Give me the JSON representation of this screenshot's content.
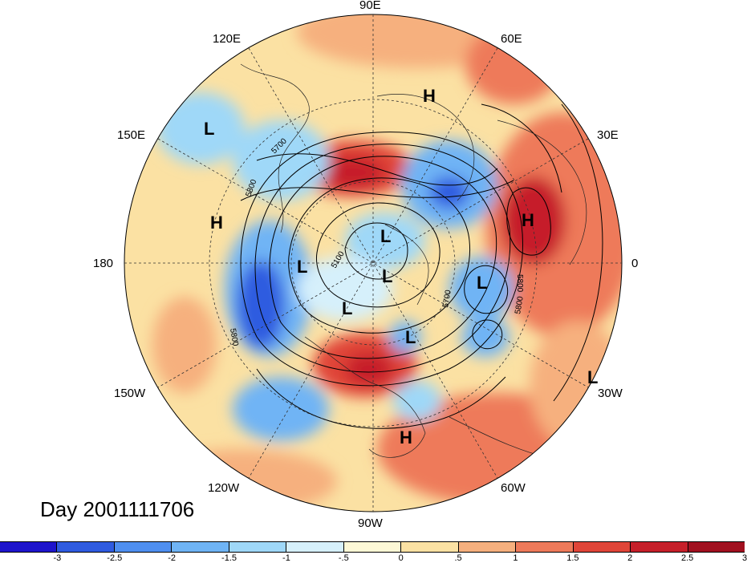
{
  "title": "Day 2001111706",
  "longitude_labels": {
    "lon_90e": "90E",
    "lon_120e": "120E",
    "lon_60e": "60E",
    "lon_150e": "150E",
    "lon_30e": "30E",
    "lon_180": "180",
    "lon_0": "0",
    "lon_150w": "150W",
    "lon_30w": "30W",
    "lon_120w": "120W",
    "lon_60w": "60W",
    "lon_90w": "90W"
  },
  "pressure_centers": [
    {
      "label": "H"
    },
    {
      "label": "L"
    },
    {
      "label": "H"
    },
    {
      "label": "H"
    },
    {
      "label": "L"
    },
    {
      "label": "L"
    },
    {
      "label": "L"
    },
    {
      "label": "L"
    },
    {
      "label": "L"
    },
    {
      "label": "L"
    },
    {
      "label": "L"
    },
    {
      "label": "H"
    }
  ],
  "contour_labels": [
    "5700",
    "5800",
    "5100",
    "5700",
    "5800",
    "5800",
    "5800"
  ],
  "colorbar": {
    "colors": [
      "#1e14cc",
      "#2f5be0",
      "#4f8ff0",
      "#6fb4f5",
      "#9fd8f8",
      "#d6f0fb",
      "#fdf8d6",
      "#fbe1a3",
      "#f6b07e",
      "#ee7a5a",
      "#e04538",
      "#c61f2a",
      "#a1101f"
    ],
    "ticks": [
      "-3",
      "-2.5",
      "-2",
      "-1.5",
      "-1",
      "-.5",
      "0",
      ".5",
      "1",
      "1.5",
      "2",
      "2.5",
      "3"
    ]
  }
}
